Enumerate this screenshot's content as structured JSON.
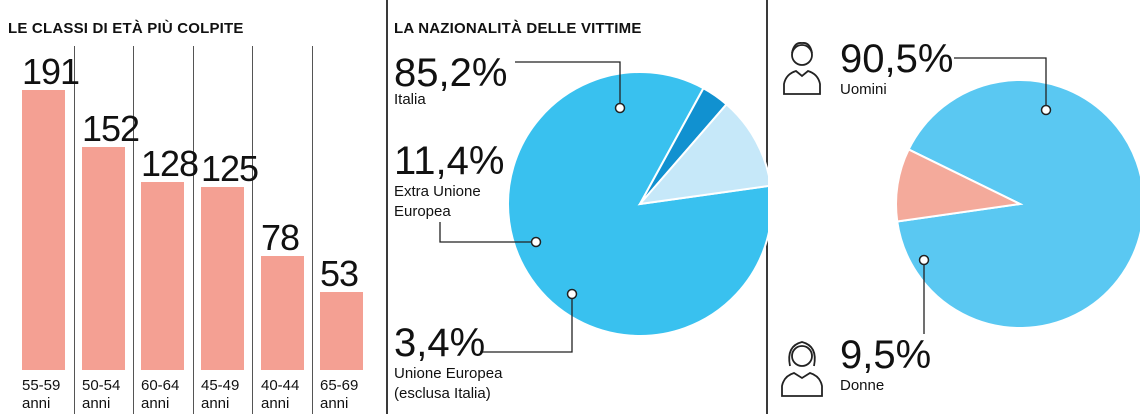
{
  "colors": {
    "bar": "#f4a093",
    "italia": "#39c1ef",
    "extra_ue": "#c6e8f9",
    "ue": "#1191d0",
    "uomini": "#5ac8f2",
    "donne": "#f4aa9b",
    "line": "#222222"
  },
  "chart_data": [
    {
      "type": "bar",
      "title": "LE CLASSI DI ETÀ PIÙ COLPITE",
      "categories": [
        "55-59",
        "50-54",
        "60-64",
        "45-49",
        "40-44",
        "65-69"
      ],
      "unit_label": "anni",
      "values": [
        191,
        152,
        128,
        125,
        78,
        53
      ],
      "value_labels": [
        "191",
        "152",
        "128",
        "125",
        "78",
        "53"
      ],
      "ylim": [
        0,
        191
      ]
    },
    {
      "type": "pie",
      "title": "LA NAZIONALITÀ DELLE VITTIME",
      "slices": [
        {
          "percent": 85.2,
          "value_label": "85,2%",
          "label": [
            "Italia"
          ],
          "color": "#39c1ef"
        },
        {
          "percent": 11.4,
          "value_label": "11,4%",
          "label": [
            "Extra Unione",
            "Europea"
          ],
          "color": "#c6e8f9"
        },
        {
          "percent": 3.4,
          "value_label": "3,4%",
          "label": [
            "Unione Europea",
            "(esclusa Italia)"
          ],
          "color": "#1191d0"
        }
      ]
    },
    {
      "type": "pie",
      "title": "",
      "slices": [
        {
          "percent": 90.5,
          "value_label": "90,5%",
          "label": [
            "Uomini"
          ],
          "color": "#5ac8f2",
          "icon": "man-icon"
        },
        {
          "percent": 9.5,
          "value_label": "9,5%",
          "label": [
            "Donne"
          ],
          "color": "#f4aa9b",
          "icon": "woman-icon"
        }
      ]
    }
  ]
}
